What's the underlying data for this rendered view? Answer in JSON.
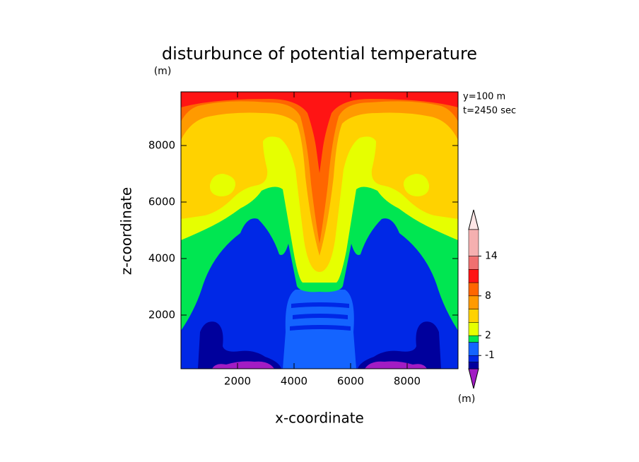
{
  "chart_data": {
    "type": "contour",
    "title": "disturbunce of potential temperature",
    "unit_label": "(m)",
    "annotations": [
      "y=100 m",
      "t=2450 sec"
    ],
    "x_label": "x-coordinate",
    "y_label": "z-coordinate",
    "xlim": [
      0,
      9800
    ],
    "xticks": [
      2000,
      4000,
      6000,
      8000
    ],
    "ylim": [
      100,
      9900
    ],
    "yticks": [
      2000,
      4000,
      6000,
      8000
    ],
    "levels": [
      -3,
      -2,
      -1,
      1,
      2,
      4,
      6,
      8,
      10,
      12,
      14,
      18
    ],
    "colors": [
      "#a21cc4",
      "#00009c",
      "#0028e6",
      "#1464ff",
      "#00e651",
      "#e6ff00",
      "#ffd200",
      "#ff9a00",
      "#ff6600",
      "#ff1414",
      "#f07070",
      "#f5b0b0",
      "#ffe6e6"
    ],
    "colorbar_lim": [
      -3,
      18
    ],
    "colorbar_ticks": [
      -1,
      2,
      8,
      14
    ],
    "colorbar_label": "(m)"
  }
}
